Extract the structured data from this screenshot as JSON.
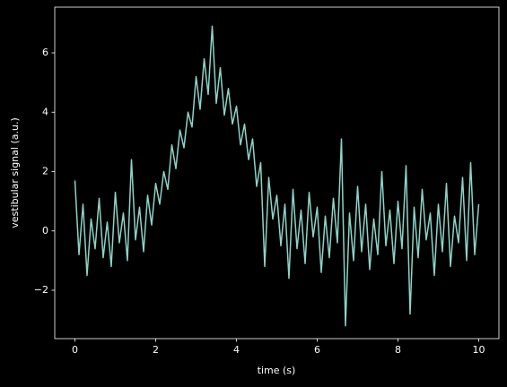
{
  "chart_data": {
    "type": "line",
    "xlabel": "time (s)",
    "ylabel": "vestibular signal (a.u.)",
    "x": [
      0.0,
      0.1,
      0.2,
      0.3,
      0.4,
      0.5,
      0.6,
      0.7,
      0.8,
      0.9,
      1.0,
      1.1,
      1.2,
      1.3,
      1.4,
      1.5,
      1.6,
      1.7,
      1.8,
      1.9,
      2.0,
      2.1,
      2.2,
      2.3,
      2.4,
      2.5,
      2.6,
      2.7,
      2.8,
      2.9,
      3.0,
      3.1,
      3.2,
      3.3,
      3.4,
      3.5,
      3.6,
      3.7,
      3.8,
      3.9,
      4.0,
      4.1,
      4.2,
      4.3,
      4.4,
      4.5,
      4.6,
      4.7,
      4.8,
      4.9,
      5.0,
      5.1,
      5.2,
      5.3,
      5.4,
      5.5,
      5.6,
      5.7,
      5.8,
      5.9,
      6.0,
      6.1,
      6.2,
      6.3,
      6.4,
      6.5,
      6.6,
      6.7,
      6.8,
      6.9,
      7.0,
      7.1,
      7.2,
      7.3,
      7.4,
      7.5,
      7.6,
      7.7,
      7.8,
      7.9,
      8.0,
      8.1,
      8.2,
      8.3,
      8.4,
      8.5,
      8.6,
      8.7,
      8.8,
      8.9,
      9.0,
      9.1,
      9.2,
      9.3,
      9.4,
      9.5,
      9.6,
      9.7,
      9.8,
      9.9,
      10.0
    ],
    "series": [
      {
        "color": "#8dd3c7",
        "values": [
          1.7,
          -0.8,
          0.9,
          -1.5,
          0.4,
          -0.6,
          1.1,
          -0.9,
          0.3,
          -1.2,
          1.3,
          -0.4,
          0.6,
          -1.0,
          2.4,
          -0.3,
          0.8,
          -0.7,
          1.2,
          0.2,
          1.6,
          0.9,
          2.0,
          1.4,
          2.9,
          2.1,
          3.4,
          2.8,
          4.0,
          3.5,
          5.2,
          4.1,
          5.8,
          4.6,
          6.9,
          4.3,
          5.5,
          3.9,
          4.8,
          3.6,
          4.2,
          2.9,
          3.6,
          2.4,
          3.1,
          1.5,
          2.3,
          -1.2,
          1.8,
          0.4,
          1.2,
          -0.5,
          0.9,
          -1.6,
          1.4,
          -0.6,
          0.7,
          -1.1,
          1.3,
          -0.2,
          0.8,
          -1.4,
          0.5,
          -0.9,
          1.1,
          -0.4,
          3.1,
          -3.2,
          0.6,
          -1.0,
          1.5,
          -0.7,
          0.9,
          -1.3,
          0.4,
          -0.8,
          2.0,
          -0.5,
          0.7,
          -1.1,
          1.0,
          -0.6,
          2.2,
          -2.8,
          0.8,
          -0.9,
          1.4,
          -0.3,
          0.6,
          -1.5,
          0.9,
          -0.7,
          1.6,
          -1.2,
          0.5,
          -0.4,
          1.8,
          -1.0,
          2.3,
          -0.8,
          0.9
        ]
      }
    ],
    "xlim": [
      -0.5,
      10.5
    ],
    "ylim": [
      -3.63,
      7.54
    ],
    "xticks": [
      0,
      2,
      4,
      6,
      8,
      10
    ],
    "yticks": [
      {
        "value": -2,
        "label": "−2"
      },
      0,
      2,
      4,
      6
    ]
  }
}
